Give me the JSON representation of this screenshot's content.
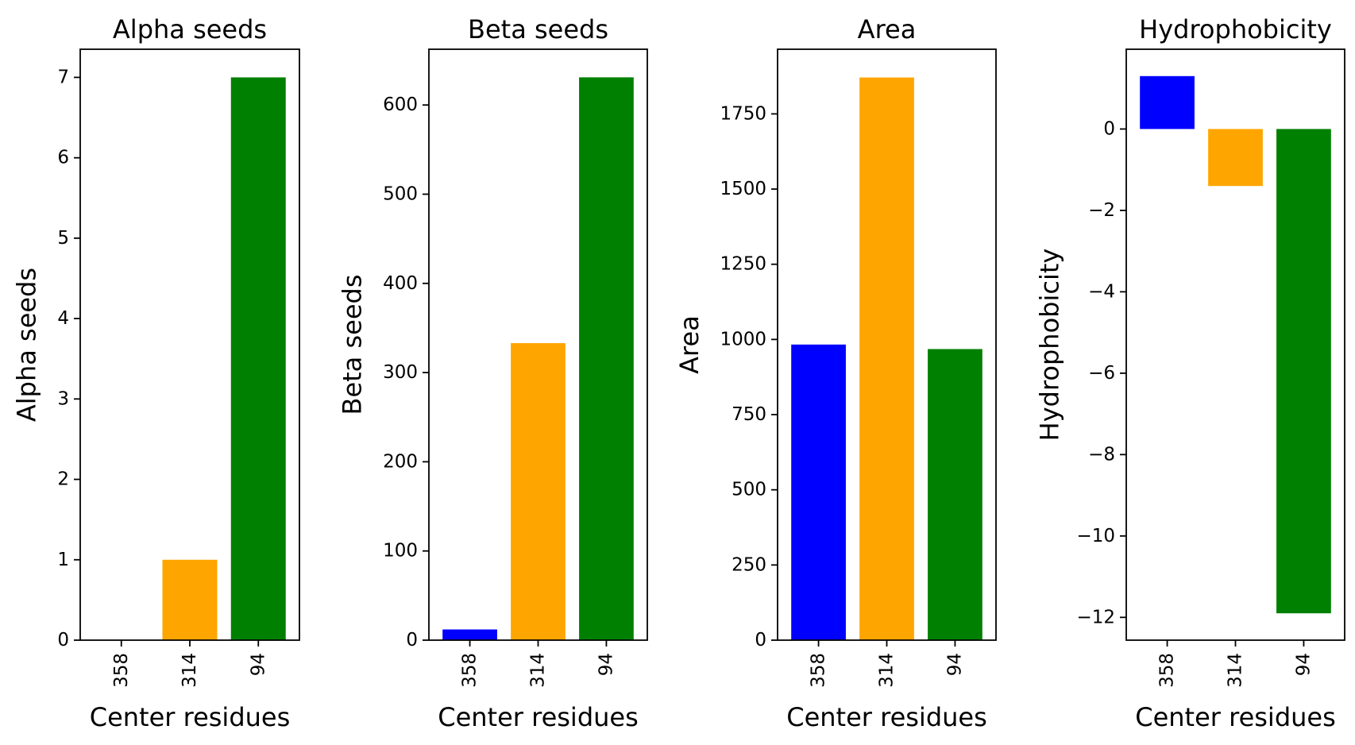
{
  "chart_data": [
    {
      "type": "bar",
      "title": "Alpha seeds",
      "xlabel": "Center residues",
      "ylabel": "Alpha seeds",
      "categories": [
        "358",
        "314",
        "94"
      ],
      "values": [
        0,
        1,
        7
      ],
      "colors": [
        "#0000ff",
        "#ffa500",
        "#008000"
      ],
      "ylim": [
        0,
        7.35
      ],
      "yticks": [
        0,
        1,
        2,
        3,
        4,
        5,
        6,
        7
      ],
      "ytick_labels": [
        "0",
        "1",
        "2",
        "3",
        "4",
        "5",
        "6",
        "7"
      ],
      "grid": false
    },
    {
      "type": "bar",
      "title": "Beta seeds",
      "xlabel": "Center residues",
      "ylabel": "Beta seeds",
      "categories": [
        "358",
        "314",
        "94"
      ],
      "values": [
        12,
        333,
        631
      ],
      "colors": [
        "#0000ff",
        "#ffa500",
        "#008000"
      ],
      "ylim": [
        0,
        662.5
      ],
      "yticks": [
        0,
        100,
        200,
        300,
        400,
        500,
        600
      ],
      "ytick_labels": [
        "0",
        "100",
        "200",
        "300",
        "400",
        "500",
        "600"
      ],
      "grid": false
    },
    {
      "type": "bar",
      "title": "Area",
      "xlabel": "Center residues",
      "ylabel": "Area",
      "categories": [
        "358",
        "314",
        "94"
      ],
      "values": [
        983,
        1871,
        968
      ],
      "colors": [
        "#0000ff",
        "#ffa500",
        "#008000"
      ],
      "ylim": [
        0,
        1965
      ],
      "yticks": [
        0,
        250,
        500,
        750,
        1000,
        1250,
        1500,
        1750
      ],
      "ytick_labels": [
        "0",
        "250",
        "500",
        "750",
        "1000",
        "1250",
        "1500",
        "1750"
      ],
      "grid": false
    },
    {
      "type": "bar",
      "title": "Hydrophobicity",
      "xlabel": "Center residues",
      "ylabel": "Hydrophobicity",
      "categories": [
        "358",
        "314",
        "94"
      ],
      "values": [
        1.3,
        -1.4,
        -11.9
      ],
      "colors": [
        "#0000ff",
        "#ffa500",
        "#008000"
      ],
      "ylim": [
        -12.56,
        1.96
      ],
      "yticks": [
        0,
        -2,
        -4,
        -6,
        -8,
        -10,
        -12
      ],
      "ytick_labels": [
        "0",
        "−2",
        "−4",
        "−6",
        "−8",
        "−10",
        "−12"
      ],
      "grid": false
    }
  ]
}
